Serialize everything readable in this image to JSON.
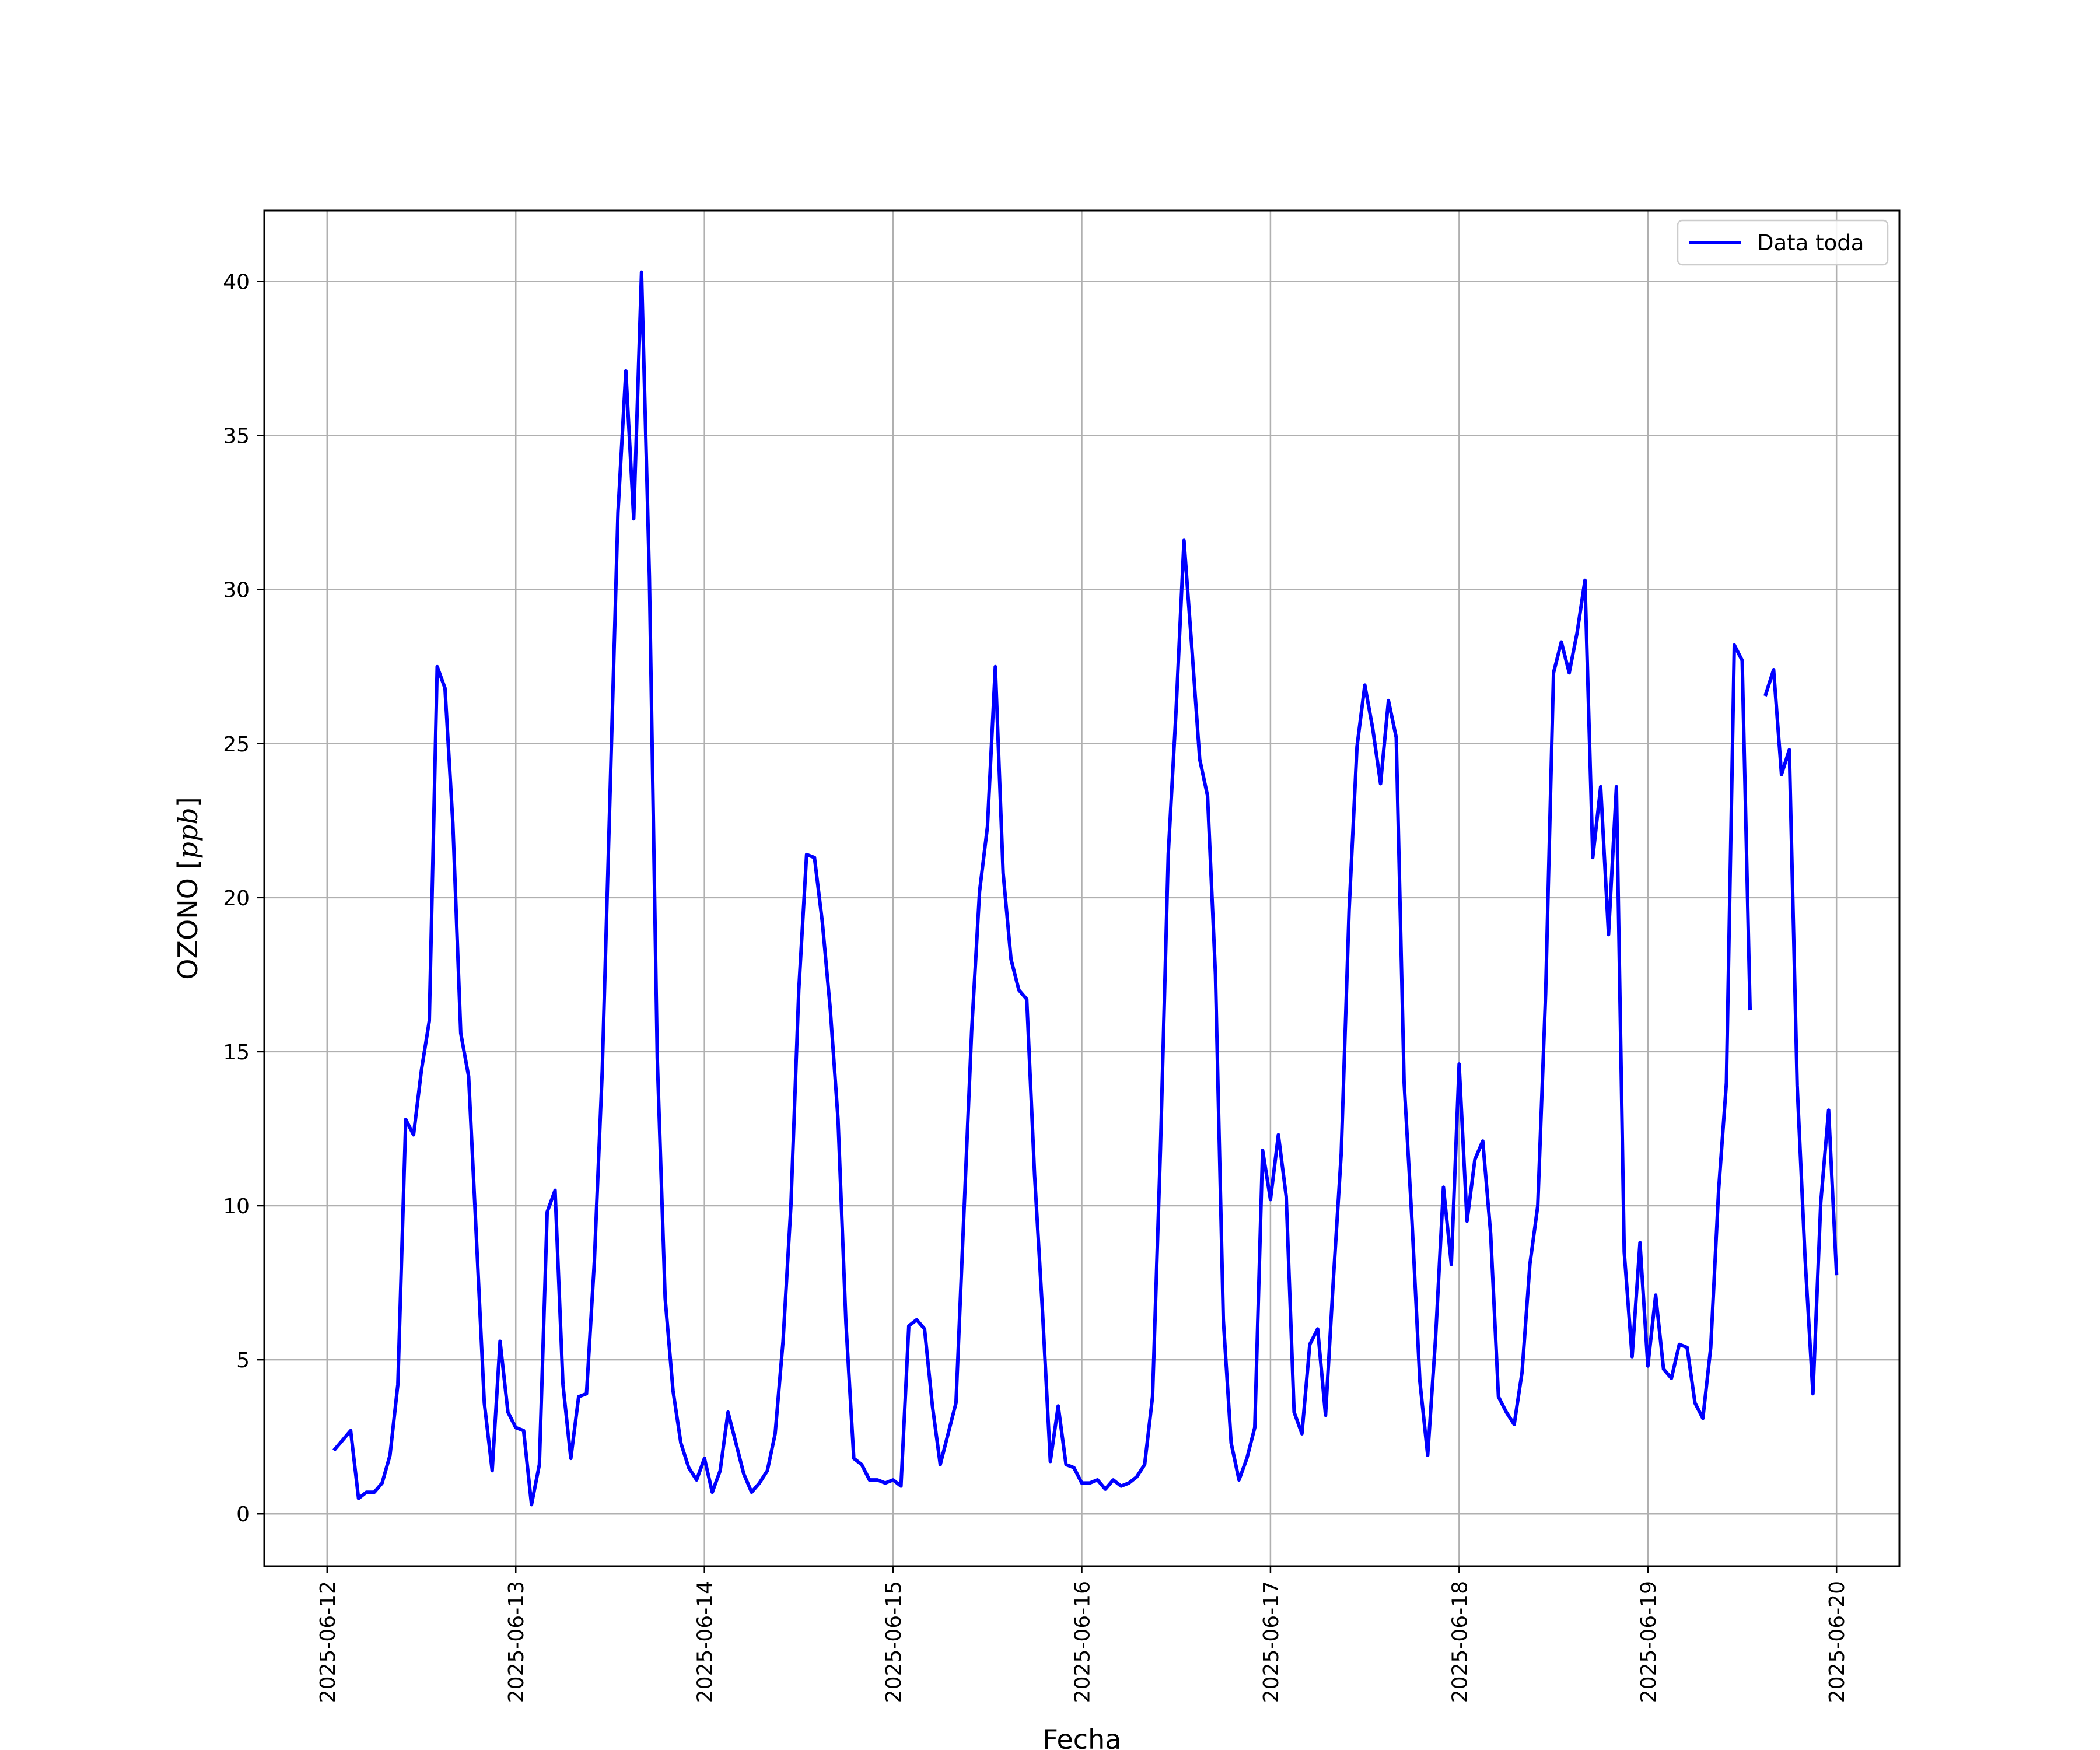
{
  "chart_data": {
    "type": "line",
    "title": "",
    "xlabel": "Fecha",
    "ylabel": "OZONO [ppb]",
    "xlim": [
      "2025-06-11 16:00",
      "2025-06-20 08:00"
    ],
    "ylim": [
      -1.7,
      42.3
    ],
    "yticks": [
      0,
      5,
      10,
      15,
      20,
      25,
      30,
      35,
      40
    ],
    "xticks": [
      "2025-06-12",
      "2025-06-13",
      "2025-06-14",
      "2025-06-15",
      "2025-06-16",
      "2025-06-17",
      "2025-06-18",
      "2025-06-19",
      "2025-06-20"
    ],
    "grid": true,
    "legend_position": "top-right",
    "line_color": "#0000ff",
    "series": [
      {
        "name": "Data toda",
        "x": [
          "2025-06-12 01:00",
          "2025-06-12 02:00",
          "2025-06-12 03:00",
          "2025-06-12 04:00",
          "2025-06-12 05:00",
          "2025-06-12 06:00",
          "2025-06-12 07:00",
          "2025-06-12 08:00",
          "2025-06-12 09:00",
          "2025-06-12 10:00",
          "2025-06-12 11:00",
          "2025-06-12 12:00",
          "2025-06-12 13:00",
          "2025-06-12 14:00",
          "2025-06-12 15:00",
          "2025-06-12 16:00",
          "2025-06-12 17:00",
          "2025-06-12 18:00",
          "2025-06-12 19:00",
          "2025-06-12 20:00",
          "2025-06-12 21:00",
          "2025-06-12 22:00",
          "2025-06-12 23:00",
          "2025-06-13 00:00",
          "2025-06-13 01:00",
          "2025-06-13 02:00",
          "2025-06-13 03:00",
          "2025-06-13 04:00",
          "2025-06-13 05:00",
          "2025-06-13 06:00",
          "2025-06-13 07:00",
          "2025-06-13 08:00",
          "2025-06-13 09:00",
          "2025-06-13 10:00",
          "2025-06-13 11:00",
          "2025-06-13 12:00",
          "2025-06-13 13:00",
          "2025-06-13 14:00",
          "2025-06-13 15:00",
          "2025-06-13 16:00",
          "2025-06-13 17:00",
          "2025-06-13 18:00",
          "2025-06-13 19:00",
          "2025-06-13 20:00",
          "2025-06-13 21:00",
          "2025-06-13 22:00",
          "2025-06-13 23:00",
          "2025-06-14 00:00",
          "2025-06-14 01:00",
          "2025-06-14 02:00",
          "2025-06-14 03:00",
          "2025-06-14 04:00",
          "2025-06-14 05:00",
          "2025-06-14 06:00",
          "2025-06-14 07:00",
          "2025-06-14 08:00",
          "2025-06-14 09:00",
          "2025-06-14 10:00",
          "2025-06-14 11:00",
          "2025-06-14 12:00",
          "2025-06-14 13:00",
          "2025-06-14 14:00",
          "2025-06-14 15:00",
          "2025-06-14 16:00",
          "2025-06-14 17:00",
          "2025-06-14 18:00",
          "2025-06-14 19:00",
          "2025-06-14 20:00",
          "2025-06-14 21:00",
          "2025-06-14 22:00",
          "2025-06-14 23:00",
          "2025-06-15 00:00",
          "2025-06-15 01:00",
          "2025-06-15 02:00",
          "2025-06-15 03:00",
          "2025-06-15 04:00",
          "2025-06-15 05:00",
          "2025-06-15 06:00",
          "2025-06-15 07:00",
          "2025-06-15 08:00",
          "2025-06-15 09:00",
          "2025-06-15 10:00",
          "2025-06-15 11:00",
          "2025-06-15 12:00",
          "2025-06-15 13:00",
          "2025-06-15 14:00",
          "2025-06-15 15:00",
          "2025-06-15 16:00",
          "2025-06-15 17:00",
          "2025-06-15 18:00",
          "2025-06-15 19:00",
          "2025-06-15 20:00",
          "2025-06-15 21:00",
          "2025-06-15 22:00",
          "2025-06-15 23:00",
          "2025-06-16 00:00",
          "2025-06-16 01:00",
          "2025-06-16 02:00",
          "2025-06-16 03:00",
          "2025-06-16 04:00",
          "2025-06-16 05:00",
          "2025-06-16 06:00",
          "2025-06-16 07:00",
          "2025-06-16 08:00",
          "2025-06-16 09:00",
          "2025-06-16 10:00",
          "2025-06-16 11:00",
          "2025-06-16 12:00",
          "2025-06-16 13:00",
          "2025-06-16 14:00",
          "2025-06-16 15:00",
          "2025-06-16 16:00",
          "2025-06-16 17:00",
          "2025-06-16 18:00",
          "2025-06-16 19:00",
          "2025-06-16 20:00",
          "2025-06-16 21:00",
          "2025-06-16 22:00",
          "2025-06-16 23:00",
          "2025-06-17 00:00",
          "2025-06-17 01:00",
          "2025-06-17 02:00",
          "2025-06-17 03:00",
          "2025-06-17 04:00",
          "2025-06-17 05:00",
          "2025-06-17 06:00",
          "2025-06-17 07:00",
          "2025-06-17 08:00",
          "2025-06-17 09:00",
          "2025-06-17 10:00",
          "2025-06-17 11:00",
          "2025-06-17 12:00",
          "2025-06-17 13:00",
          "2025-06-17 14:00",
          "2025-06-17 15:00",
          "2025-06-17 16:00",
          "2025-06-17 17:00",
          "2025-06-17 18:00",
          "2025-06-17 19:00",
          "2025-06-17 20:00",
          "2025-06-17 21:00",
          "2025-06-17 22:00",
          "2025-06-17 23:00",
          "2025-06-18 00:00",
          "2025-06-18 01:00",
          "2025-06-18 02:00",
          "2025-06-18 03:00",
          "2025-06-18 04:00",
          "2025-06-18 05:00",
          "2025-06-18 06:00",
          "2025-06-18 07:00",
          "2025-06-18 08:00",
          "2025-06-18 09:00",
          "2025-06-18 10:00",
          "2025-06-18 11:00",
          "2025-06-18 12:00",
          "2025-06-18 13:00",
          "2025-06-18 14:00",
          "2025-06-18 15:00",
          "2025-06-18 16:00",
          "2025-06-18 17:00",
          "2025-06-18 18:00",
          "2025-06-18 19:00",
          "2025-06-18 20:00",
          "2025-06-18 21:00",
          "2025-06-18 22:00",
          "2025-06-18 23:00",
          "2025-06-19 00:00",
          "2025-06-19 01:00",
          "2025-06-19 02:00",
          "2025-06-19 03:00",
          "2025-06-19 04:00",
          "2025-06-19 05:00",
          "2025-06-19 06:00",
          "2025-06-19 07:00",
          "2025-06-19 08:00",
          "2025-06-19 09:00",
          "2025-06-19 10:00",
          "2025-06-19 11:00",
          "2025-06-19 12:00",
          "2025-06-19 13:00",
          "2025-06-19 14:00",
          "2025-06-19 15:00",
          "2025-06-19 16:00",
          "2025-06-19 17:00",
          "2025-06-19 18:00",
          "2025-06-19 19:00",
          "2025-06-19 20:00",
          "2025-06-19 21:00",
          "2025-06-19 22:00",
          "2025-06-19 23:00",
          "2025-06-20 00:00"
        ],
        "y": [
          2.1,
          2.4,
          2.7,
          0.5,
          0.7,
          0.7,
          1.0,
          1.9,
          4.2,
          12.8,
          12.3,
          14.4,
          16.0,
          27.5,
          26.8,
          22.4,
          15.6,
          14.2,
          8.9,
          3.6,
          1.4,
          5.6,
          3.3,
          2.8,
          2.7,
          0.3,
          1.6,
          9.8,
          10.5,
          4.2,
          1.8,
          3.8,
          3.9,
          8.2,
          14.4,
          23.4,
          32.5,
          37.1,
          32.3,
          40.3,
          30.4,
          14.8,
          7.0,
          4.0,
          2.3,
          1.5,
          1.1,
          1.8,
          0.7,
          1.4,
          3.3,
          2.3,
          1.3,
          0.7,
          1.0,
          1.4,
          2.6,
          5.6,
          10.0,
          17.0,
          21.4,
          21.3,
          19.2,
          16.4,
          12.8,
          6.2,
          1.8,
          1.6,
          1.1,
          1.1,
          1.0,
          1.1,
          0.9,
          6.1,
          6.3,
          6.0,
          3.5,
          1.6,
          2.6,
          3.6,
          9.7,
          15.7,
          20.2,
          22.3,
          27.5,
          20.8,
          18.0,
          17.0,
          16.7,
          11.0,
          6.6,
          1.7,
          3.5,
          1.6,
          1.5,
          1.0,
          1.0,
          1.1,
          0.8,
          1.1,
          0.9,
          1.0,
          1.2,
          1.6,
          3.8,
          11.8,
          21.4,
          26.1,
          31.6,
          28.1,
          24.5,
          23.3,
          17.5,
          6.3,
          2.3,
          1.1,
          1.8,
          2.8,
          11.8,
          10.2,
          12.3,
          10.3,
          3.3,
          2.6,
          5.5,
          6.0,
          3.2,
          7.6,
          11.7,
          19.6,
          24.9,
          26.9,
          25.5,
          23.7,
          26.4,
          25.2,
          14.0,
          9.5,
          4.3,
          1.9,
          5.7,
          10.6,
          8.1,
          14.6,
          9.5,
          11.5,
          12.1,
          9.1,
          3.8,
          3.3,
          2.9,
          4.6,
          8.1,
          10.0,
          16.9,
          27.3,
          28.3,
          27.3,
          28.6,
          30.3,
          21.3,
          23.6,
          18.8,
          23.6,
          8.5,
          5.1,
          8.8,
          4.8,
          7.1,
          4.7,
          4.4,
          5.5,
          5.4,
          3.6,
          3.1,
          5.4,
          10.5,
          14.0,
          28.2,
          27.7,
          16.4,
          null,
          26.6,
          27.4,
          24.0,
          24.8,
          13.9,
          8.3,
          3.9,
          10.1,
          13.1,
          7.8
        ]
      }
    ]
  }
}
